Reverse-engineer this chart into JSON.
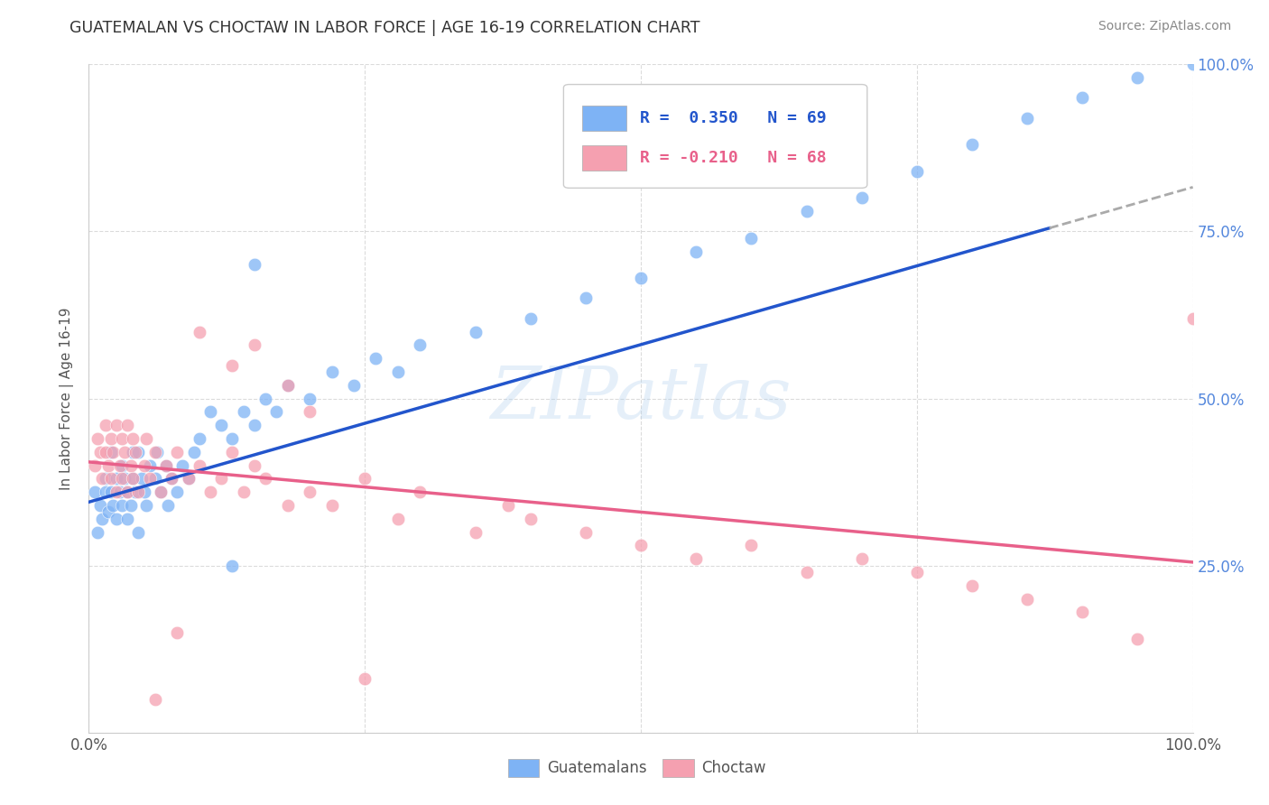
{
  "title": "GUATEMALAN VS CHOCTAW IN LABOR FORCE | AGE 16-19 CORRELATION CHART",
  "source": "Source: ZipAtlas.com",
  "ylabel": "In Labor Force | Age 16-19",
  "xlim": [
    0.0,
    1.0
  ],
  "ylim": [
    0.0,
    1.0
  ],
  "xticks": [
    0.0,
    0.25,
    0.5,
    0.75,
    1.0
  ],
  "yticks": [
    0.0,
    0.25,
    0.5,
    0.75,
    1.0
  ],
  "xtick_labels": [
    "0.0%",
    "",
    "",
    "",
    "100.0%"
  ],
  "ytick_labels_right": [
    "",
    "25.0%",
    "50.0%",
    "75.0%",
    "100.0%"
  ],
  "blue_color": "#7EB3F5",
  "pink_color": "#F5A0B0",
  "trend_blue": "#2255CC",
  "trend_pink": "#E8608A",
  "trend_dash_color": "#AAAAAA",
  "blue_line_x_end": 0.87,
  "blue_line_y_start": 0.345,
  "blue_line_y_at_end": 0.755,
  "blue_line_y_at_1": 1.01,
  "pink_line_y_start": 0.405,
  "pink_line_y_end": 0.255,
  "watermark_text": "ZIPatlas",
  "legend_r1_text": "R =  0.350   N = 69",
  "legend_r2_text": "R = -0.210   N = 68",
  "legend_r1_color": "#2255CC",
  "legend_r2_color": "#E8608A",
  "guat_x": [
    0.005,
    0.008,
    0.01,
    0.012,
    0.015,
    0.015,
    0.018,
    0.02,
    0.02,
    0.022,
    0.025,
    0.025,
    0.028,
    0.03,
    0.03,
    0.032,
    0.035,
    0.035,
    0.038,
    0.04,
    0.04,
    0.042,
    0.045,
    0.045,
    0.048,
    0.05,
    0.052,
    0.055,
    0.06,
    0.062,
    0.065,
    0.07,
    0.072,
    0.075,
    0.08,
    0.085,
    0.09,
    0.095,
    0.1,
    0.11,
    0.12,
    0.13,
    0.14,
    0.15,
    0.16,
    0.17,
    0.18,
    0.2,
    0.22,
    0.24,
    0.26,
    0.28,
    0.3,
    0.35,
    0.4,
    0.45,
    0.5,
    0.55,
    0.6,
    0.65,
    0.7,
    0.75,
    0.8,
    0.85,
    0.9,
    0.95,
    1.0,
    0.15,
    0.13
  ],
  "guat_y": [
    0.36,
    0.3,
    0.34,
    0.32,
    0.36,
    0.38,
    0.33,
    0.36,
    0.42,
    0.34,
    0.38,
    0.32,
    0.36,
    0.34,
    0.4,
    0.38,
    0.36,
    0.32,
    0.34,
    0.38,
    0.42,
    0.36,
    0.3,
    0.42,
    0.38,
    0.36,
    0.34,
    0.4,
    0.38,
    0.42,
    0.36,
    0.4,
    0.34,
    0.38,
    0.36,
    0.4,
    0.38,
    0.42,
    0.44,
    0.48,
    0.46,
    0.44,
    0.48,
    0.46,
    0.5,
    0.48,
    0.52,
    0.5,
    0.54,
    0.52,
    0.56,
    0.54,
    0.58,
    0.6,
    0.62,
    0.65,
    0.68,
    0.72,
    0.74,
    0.78,
    0.8,
    0.84,
    0.88,
    0.92,
    0.95,
    0.98,
    1.0,
    0.7,
    0.25
  ],
  "choc_x": [
    0.005,
    0.008,
    0.01,
    0.012,
    0.015,
    0.015,
    0.018,
    0.02,
    0.02,
    0.022,
    0.025,
    0.025,
    0.028,
    0.03,
    0.03,
    0.032,
    0.035,
    0.035,
    0.038,
    0.04,
    0.04,
    0.042,
    0.045,
    0.05,
    0.052,
    0.055,
    0.06,
    0.065,
    0.07,
    0.075,
    0.08,
    0.09,
    0.1,
    0.11,
    0.12,
    0.13,
    0.14,
    0.15,
    0.16,
    0.18,
    0.2,
    0.22,
    0.25,
    0.28,
    0.3,
    0.35,
    0.38,
    0.4,
    0.45,
    0.5,
    0.55,
    0.6,
    0.65,
    0.7,
    0.75,
    0.8,
    0.85,
    0.9,
    0.95,
    1.0,
    0.1,
    0.13,
    0.15,
    0.18,
    0.2,
    0.25,
    0.06,
    0.08
  ],
  "choc_y": [
    0.4,
    0.44,
    0.42,
    0.38,
    0.42,
    0.46,
    0.4,
    0.44,
    0.38,
    0.42,
    0.46,
    0.36,
    0.4,
    0.44,
    0.38,
    0.42,
    0.46,
    0.36,
    0.4,
    0.44,
    0.38,
    0.42,
    0.36,
    0.4,
    0.44,
    0.38,
    0.42,
    0.36,
    0.4,
    0.38,
    0.42,
    0.38,
    0.4,
    0.36,
    0.38,
    0.42,
    0.36,
    0.4,
    0.38,
    0.34,
    0.36,
    0.34,
    0.38,
    0.32,
    0.36,
    0.3,
    0.34,
    0.32,
    0.3,
    0.28,
    0.26,
    0.28,
    0.24,
    0.26,
    0.24,
    0.22,
    0.2,
    0.18,
    0.14,
    0.62,
    0.6,
    0.55,
    0.58,
    0.52,
    0.48,
    0.08,
    0.05,
    0.15
  ]
}
